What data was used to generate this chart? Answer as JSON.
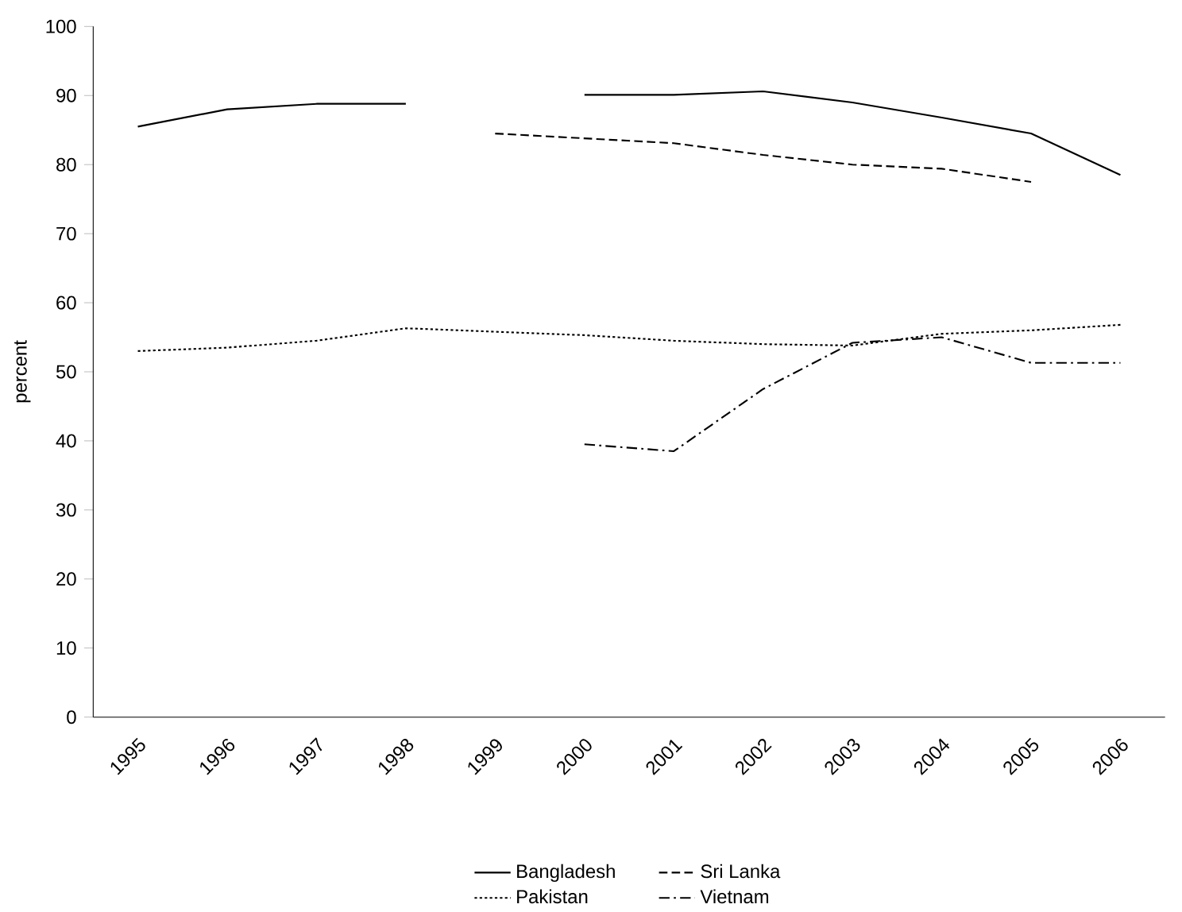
{
  "chart_data": {
    "type": "line",
    "ylabel": "percent",
    "categories": [
      "1995",
      "1996",
      "1997",
      "1998",
      "1999",
      "2000",
      "2001",
      "2002",
      "2003",
      "2004",
      "2005",
      "2006"
    ],
    "series": [
      {
        "name": "Bangladesh",
        "color": "#000000",
        "line_style": "solid",
        "values": [
          85.5,
          88,
          88.8,
          88.8,
          null,
          90.1,
          90.1,
          90.6,
          89,
          86.8,
          84.5,
          78.5
        ]
      },
      {
        "name": "Sri Lanka",
        "color": "#000000",
        "line_style": "dashed",
        "values": [
          null,
          null,
          null,
          null,
          84.5,
          83.8,
          83.1,
          81.4,
          80,
          79.4,
          77.5,
          null
        ]
      },
      {
        "name": "Pakistan",
        "color": "#000000",
        "line_style": "dotted",
        "values": [
          53,
          53.5,
          54.5,
          56.3,
          55.8,
          55.3,
          54.5,
          54,
          53.8,
          55.5,
          56,
          56.8
        ]
      },
      {
        "name": "Vietnam",
        "color": "#000000",
        "line_style": "dashdot",
        "values": [
          null,
          null,
          null,
          null,
          null,
          39.5,
          38.5,
          47.5,
          54.2,
          55,
          51.3,
          51.3
        ]
      }
    ],
    "ylim": [
      0,
      100
    ],
    "yticks": [
      0,
      10,
      20,
      30,
      40,
      50,
      60,
      70,
      80,
      90,
      100
    ],
    "grid": false,
    "legend": "bottom",
    "marker": "none"
  }
}
